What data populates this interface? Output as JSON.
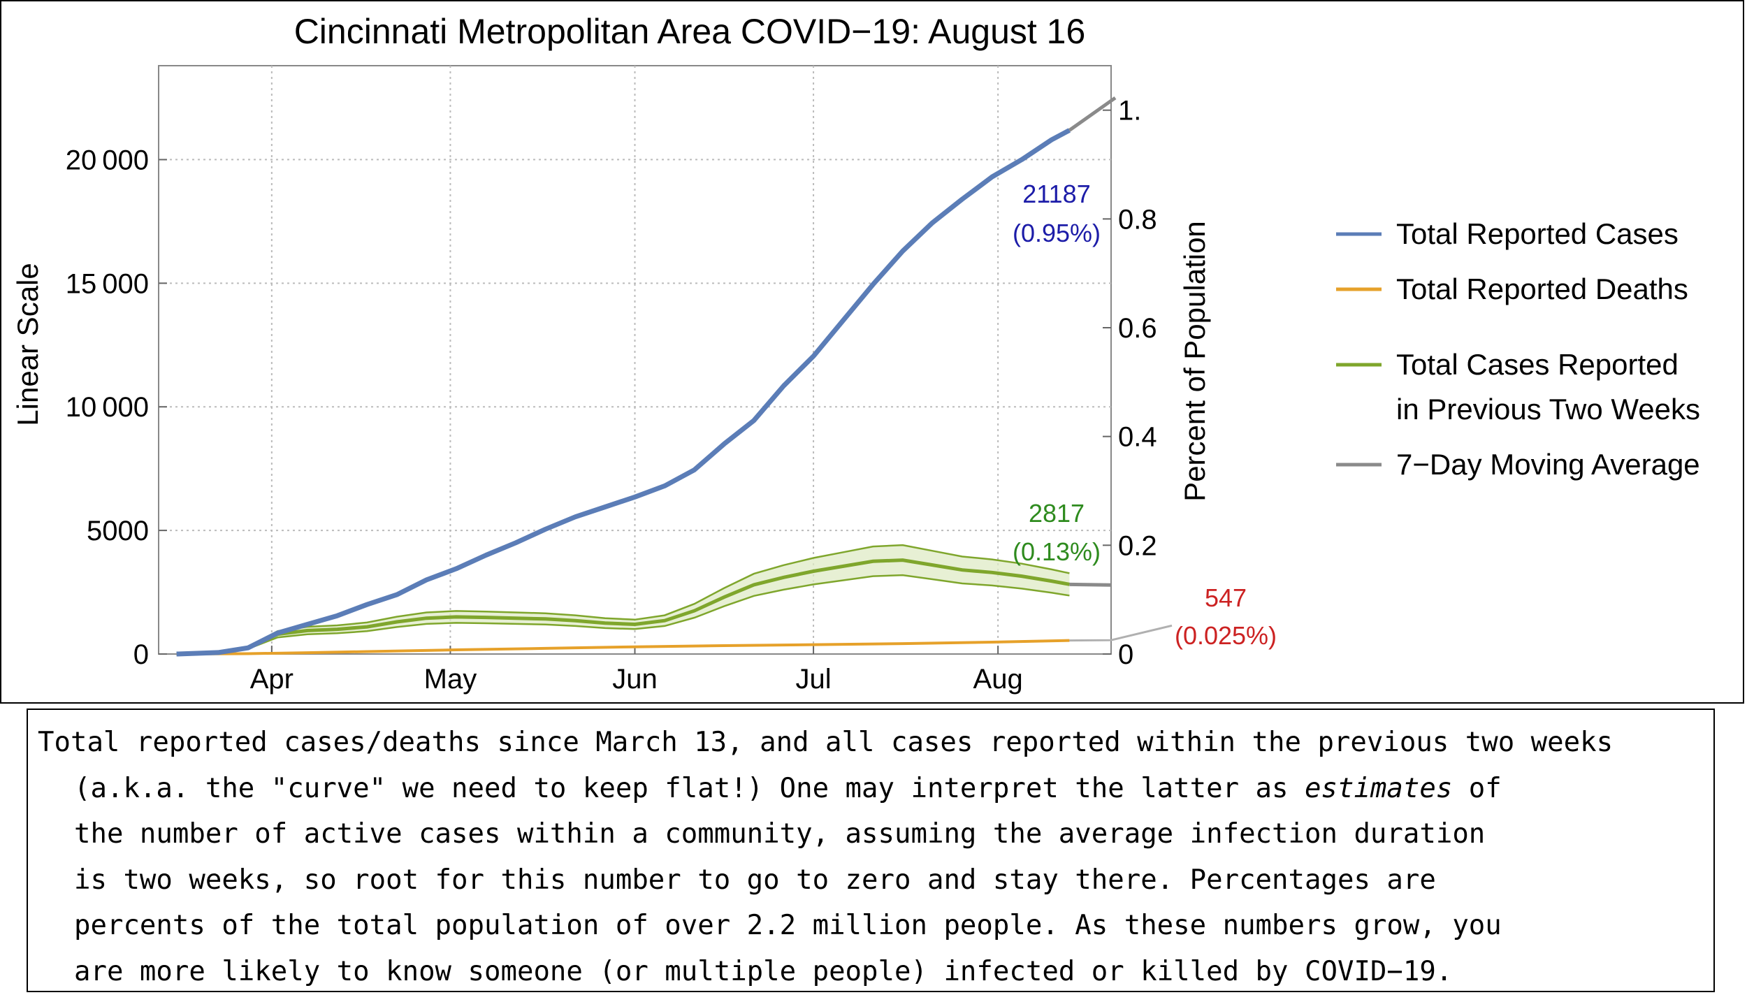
{
  "chart_data": {
    "type": "line",
    "title": "Cincinnati Metropolitan Area COVID−19: August 16",
    "ylabel_left": "Linear Scale",
    "ylabel_right": "Percent of Population",
    "x_tick_labels": [
      "Apr",
      "May",
      "Jun",
      "Jul",
      "Aug"
    ],
    "x_tick_days": [
      19,
      49,
      80,
      110,
      141
    ],
    "x_range_days": [
      0,
      160
    ],
    "x_day0": "2020-03-13",
    "ylim": [
      0,
      23800
    ],
    "y_ticks": [
      0,
      5000,
      10000,
      15000,
      20000
    ],
    "y_tick_labels": [
      "0",
      "5000",
      "10 000",
      "15 000",
      "20 000"
    ],
    "y2_ticks": [
      0,
      0.2,
      0.4,
      0.6,
      0.8,
      1.0
    ],
    "y2_tick_labels": [
      "0",
      "0.2",
      "0.4",
      "0.6",
      "0.8",
      "1."
    ],
    "grid": true,
    "legend_position": "right",
    "series": [
      {
        "name": "Total Reported Cases",
        "color": "#5b7db7",
        "x": [
          3,
          10,
          15,
          20,
          25,
          30,
          35,
          40,
          45,
          50,
          55,
          60,
          65,
          70,
          75,
          80,
          85,
          90,
          95,
          100,
          105,
          110,
          115,
          120,
          125,
          130,
          135,
          140,
          145,
          150,
          153
        ],
        "y": [
          0,
          60,
          250,
          850,
          1200,
          1550,
          2000,
          2400,
          3000,
          3450,
          4000,
          4500,
          5050,
          5550,
          5950,
          6350,
          6800,
          7450,
          8500,
          9450,
          10850,
          12050,
          13500,
          14950,
          16300,
          17450,
          18400,
          19300,
          20000,
          20800,
          21187
        ]
      },
      {
        "name": "Total Reported Deaths",
        "color": "#e6a12a",
        "x": [
          3,
          15,
          25,
          35,
          50,
          65,
          80,
          95,
          110,
          125,
          140,
          153
        ],
        "y": [
          0,
          15,
          55,
          100,
          170,
          230,
          290,
          340,
          380,
          420,
          480,
          547
        ]
      },
      {
        "name": "Total Cases Reported in Previous Two Weeks",
        "color": "#7fa62c",
        "x": [
          3,
          10,
          15,
          20,
          25,
          30,
          35,
          40,
          45,
          50,
          55,
          60,
          65,
          70,
          75,
          80,
          85,
          90,
          95,
          100,
          105,
          110,
          115,
          120,
          125,
          130,
          135,
          140,
          145,
          150,
          153
        ],
        "y": [
          0,
          60,
          250,
          800,
          950,
          1000,
          1100,
          1300,
          1450,
          1500,
          1480,
          1450,
          1420,
          1350,
          1250,
          1200,
          1350,
          1750,
          2300,
          2800,
          3100,
          3350,
          3550,
          3750,
          3800,
          3600,
          3400,
          3300,
          3150,
          2950,
          2817
        ]
      },
      {
        "name": "7−Day Moving Average",
        "color": "#8a8a8a",
        "x": [],
        "y": []
      }
    ],
    "annotations": [
      {
        "series": "Total Reported Cases",
        "value": "21187",
        "percent": "(0.95%)",
        "color": "#1c1ca8"
      },
      {
        "series": "Total Cases Reported in Previous Two Weeks",
        "value": "2817",
        "percent": "(0.13%)",
        "color": "#2e8b1e"
      },
      {
        "series": "Total Reported Deaths",
        "value": "547",
        "percent": "(0.025%)",
        "color": "#cc2222"
      }
    ]
  },
  "legend": {
    "items": [
      {
        "label_lines": [
          "Total Reported Cases"
        ],
        "color": "#5b7db7"
      },
      {
        "label_lines": [
          "Total Reported Deaths"
        ],
        "color": "#e6a12a"
      },
      {
        "label_lines": [
          "Total Cases Reported",
          "in Previous Two Weeks"
        ],
        "color": "#7fa62c"
      },
      {
        "label_lines": [
          "7−Day Moving Average"
        ],
        "color": "#8a8a8a"
      }
    ]
  },
  "caption": {
    "line1": "Total reported cases/deaths since March 13, and all cases reported within the previous two weeks",
    "line2_a": "(a.k.a. the \"curve\" we need to keep flat!) One may interpret the latter as ",
    "line2_em": "estimates",
    "line2_b": " of",
    "line3": "the number of active cases within a community, assuming the average infection duration",
    "line4": "is two weeks, so root for this number to go to zero and stay there. Percentages are",
    "line5": "percents of the total population of over 2.2 million people. As these numbers grow, you",
    "line6": "are more likely to know someone (or multiple people) infected or killed by COVID−19."
  }
}
